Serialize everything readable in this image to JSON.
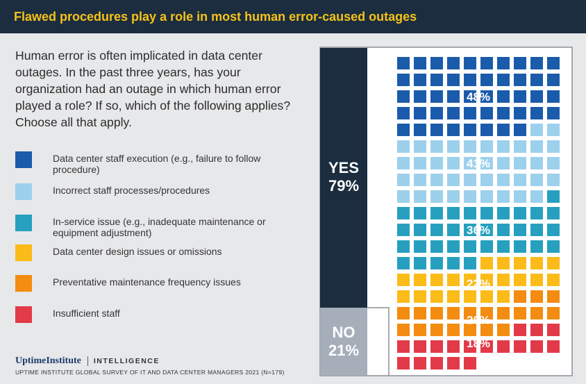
{
  "header": {
    "title": "Flawed procedures play a role in most human error-caused outages"
  },
  "question": "Human error is often implicated in data center outages. In the past three years, has your organization had an outage in which human error played a role? If so, which of the following applies? Choose all that apply.",
  "colors": {
    "header_bg": "#1b2d3f",
    "header_text": "#f5c218",
    "yes_bar": "#1b2d3f",
    "no_bar": "#a6aeba"
  },
  "branding": {
    "logo": "UptimeInstitute",
    "tag": "INTELLIGENCE",
    "source": "UPTIME INSTITUTE GLOBAL SURVEY OF IT AND DATA CENTER MANAGERS 2021 (N=179)"
  },
  "chart_data": {
    "type": "waffle",
    "summary": [
      {
        "label": "YES",
        "value": "79%",
        "percent": 79
      },
      {
        "label": "NO",
        "value": "21%",
        "percent": 21
      }
    ],
    "grid_columns": 10,
    "series": [
      {
        "name": "Data center staff execution (e.g., failure to follow procedure)",
        "value": 48,
        "label": "48%",
        "color": "#1b5bab"
      },
      {
        "name": "Incorrect staff processes/procedures",
        "value": 41,
        "label": "41%",
        "color": "#9dd0ec"
      },
      {
        "name": "In-service issue (e.g., inadequate maintenance or equipment adjustment)",
        "value": 36,
        "label": "36%",
        "color": "#27a0bf"
      },
      {
        "name": "Data center design issues or omissions",
        "value": 22,
        "label": "22%",
        "color": "#fbbb18"
      },
      {
        "name": "Preventative maintenance frequency issues",
        "value": 20,
        "label": "20%",
        "color": "#f38c10"
      },
      {
        "name": "Insufficient staff",
        "value": 18,
        "label": "18%",
        "color": "#e23a48"
      }
    ]
  }
}
